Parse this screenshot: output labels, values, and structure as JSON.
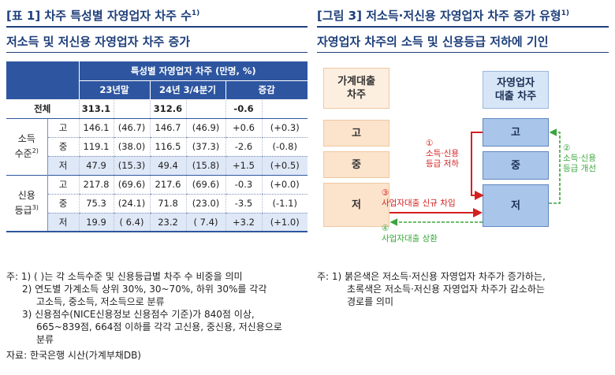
{
  "left": {
    "header_tag": "[표 1]",
    "header_title": "차주 특성별 자영업자 차주 수",
    "header_sup": "1)",
    "subtitle": "저소득 및 저신용 자영업자 차주 증가",
    "table": {
      "head_main": "특성별 자영업자 차주 (만명, %)",
      "head_cols": [
        "23년말",
        "24년 3/4분기",
        "증감"
      ],
      "total": {
        "label": "전체",
        "v1": "313.1",
        "v2": "312.6",
        "v3": "-0.6"
      },
      "groups": [
        {
          "label_line1": "소득",
          "label_line2": "수준",
          "sup": "2)",
          "rows": [
            {
              "lbl": "고",
              "a": "146.1",
              "b": "(46.7)",
              "c": "146.7",
              "d": "(46.9)",
              "e": "+0.6",
              "f": "(+0.3)"
            },
            {
              "lbl": "중",
              "a": "119.1",
              "b": "(38.0)",
              "c": "116.5",
              "d": "(37.3)",
              "e": "-2.6",
              "f": "(-0.8)"
            },
            {
              "lbl": "저",
              "a": "47.9",
              "b": "(15.3)",
              "c": "49.4",
              "d": "(15.8)",
              "e": "+1.5",
              "f": "(+0.5)"
            }
          ]
        },
        {
          "label_line1": "신용",
          "label_line2": "등급",
          "sup": "3)",
          "rows": [
            {
              "lbl": "고",
              "a": "217.8",
              "b": "(69.6)",
              "c": "217.6",
              "d": "(69.6)",
              "e": "-0.3",
              "f": "(+0.0)"
            },
            {
              "lbl": "중",
              "a": "75.3",
              "b": "(24.1)",
              "c": "71.8",
              "d": "(23.0)",
              "e": "-3.5",
              "f": "(-1.1)"
            },
            {
              "lbl": "저",
              "a": "19.9",
              "b": "( 6.4)",
              "c": "23.2",
              "d": "( 7.4)",
              "e": "+3.2",
              "f": "(+1.0)"
            }
          ]
        }
      ]
    },
    "notes": [
      "주: 1) (   )는 각 소득수준 및 신용등급별 차주 수 비중을 의미",
      "2) 연도별 가계소득 상위 30%, 30~70%, 하위 30%를 각각",
      "고소득, 중소득, 저소득으로 분류",
      "3) 신용점수(NICE신용정보 신용점수 기준)가 840점 이상,",
      "665~839점, 664점 이하를 각각 고신용, 중신용, 저신용으로",
      "분류"
    ],
    "source": "자료: 한국은행 시산(가계부채DB)"
  },
  "right": {
    "header_tag": "[그림 3]",
    "header_title": "저소득·저신용 자영업자 차주 증가 유형",
    "header_sup": "1)",
    "subtitle": "자영업자 차주의 소득 및 신용등급 저하에 기인",
    "diagram": {
      "left_head": "가계대출\n차주",
      "right_head": "자영업자\n대출 차주",
      "levels": [
        "고",
        "중",
        "저"
      ],
      "arrow1": "①\n소득·신용\n등급 저하",
      "arrow2": "②\n소득·신용\n등급 개선",
      "arrow3": "③\n사업자대출 신규 차입",
      "arrow4": "④\n사업자대출 상환",
      "red_color": "#d42020",
      "green_color": "#3aa53a"
    },
    "notes": [
      "주: 1) 붉은색은 저소득·저신용 자영업자 차주가 증가하는,",
      "초록색은 저소득·저신용 자영업자 차주가 감소하는",
      "경로를 의미"
    ]
  }
}
